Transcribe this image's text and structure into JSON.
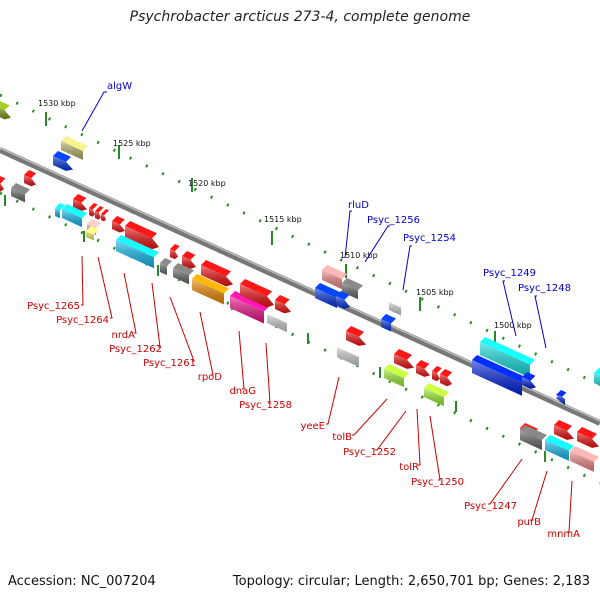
{
  "title": "Psychrobacter arcticus 273-4, complete genome",
  "footer": {
    "accession": "Accession: NC_007204",
    "summary": "Topology: circular; Length: 2,650,701 bp; Genes: 2,183"
  },
  "colors": {
    "strand_red": "#cc0000",
    "strand_blue": "#0000cc",
    "backbone": "#888888",
    "tick": "#2a8a2a"
  },
  "scale_labels": [
    "1530 kbp",
    "1525 kbp",
    "1520 kbp",
    "1515 kbp",
    "1510 kbp",
    "1505 kbp",
    "1500 kbp"
  ],
  "gene_labels_top": [
    "algW",
    "rluD",
    "Psyc_1256",
    "Psyc_1254",
    "Psyc_1249",
    "Psyc_1248"
  ],
  "gene_labels_bottom": [
    "Psyc_1265",
    "Psyc_1264",
    "nrdA",
    "Psyc_1262",
    "Psyc_1261",
    "rpoD",
    "dnaG",
    "Psyc_1258",
    "yeeE",
    "tolB",
    "Psyc_1252",
    "tolR",
    "Psyc_1250",
    "Psyc_1247",
    "purB",
    "mnmA"
  ]
}
